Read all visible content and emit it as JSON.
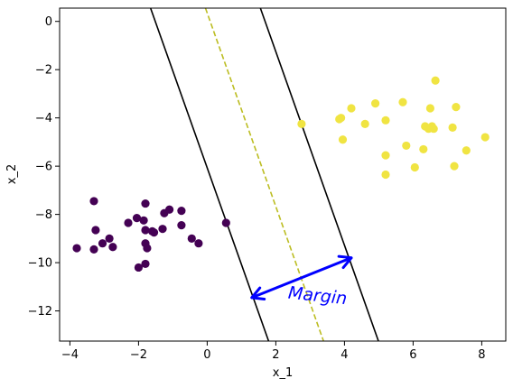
{
  "chart_data": {
    "type": "scatter",
    "xlabel": "x_1",
    "ylabel": "x_2",
    "xlim": [
      -4.3,
      8.7
    ],
    "ylim": [
      -13.25,
      0.55
    ],
    "xticks": [
      -4,
      -2,
      0,
      2,
      4,
      6,
      8
    ],
    "yticks": [
      0,
      -2,
      -4,
      -6,
      -8,
      -10,
      -12
    ],
    "xtick_labels": [
      "−4",
      "−2",
      "0",
      "2",
      "4",
      "6",
      "8"
    ],
    "ytick_labels": [
      "0",
      "−2",
      "−4",
      "−6",
      "−8",
      "−10",
      "−12"
    ],
    "grid": false,
    "series": [
      {
        "color": "#440154",
        "points": [
          [
            -3.8,
            -9.4
          ],
          [
            -3.3,
            -9.45
          ],
          [
            -3.3,
            -7.45
          ],
          [
            -3.25,
            -8.65
          ],
          [
            -3.05,
            -9.2
          ],
          [
            -2.85,
            -9.0
          ],
          [
            -2.75,
            -9.35
          ],
          [
            -2.3,
            -8.35
          ],
          [
            -2.05,
            -8.15
          ],
          [
            -1.85,
            -8.25
          ],
          [
            -1.8,
            -7.55
          ],
          [
            -1.8,
            -8.65
          ],
          [
            -1.8,
            -9.2
          ],
          [
            -1.75,
            -9.4
          ],
          [
            -1.6,
            -8.7
          ],
          [
            -1.55,
            -8.75
          ],
          [
            -1.3,
            -8.6
          ],
          [
            -1.25,
            -7.95
          ],
          [
            -1.1,
            -7.8
          ],
          [
            -0.75,
            -7.85
          ],
          [
            -0.75,
            -8.45
          ],
          [
            -0.45,
            -9.0
          ],
          [
            -0.25,
            -9.2
          ],
          [
            -2.0,
            -10.2
          ],
          [
            -1.8,
            -10.05
          ],
          [
            0.55,
            -8.35
          ]
        ]
      },
      {
        "color": "#f0e442",
        "points": [
          [
            2.75,
            -4.25
          ],
          [
            3.85,
            -4.05
          ],
          [
            3.9,
            -4.0
          ],
          [
            3.95,
            -4.9
          ],
          [
            4.2,
            -3.6
          ],
          [
            4.6,
            -4.25
          ],
          [
            4.9,
            -3.4
          ],
          [
            5.2,
            -4.1
          ],
          [
            5.2,
            -5.55
          ],
          [
            5.2,
            -6.35
          ],
          [
            5.7,
            -3.35
          ],
          [
            5.8,
            -5.15
          ],
          [
            6.05,
            -6.05
          ],
          [
            6.3,
            -5.3
          ],
          [
            6.35,
            -4.35
          ],
          [
            6.45,
            -4.45
          ],
          [
            6.5,
            -3.6
          ],
          [
            6.55,
            -4.35
          ],
          [
            6.6,
            -4.45
          ],
          [
            6.65,
            -2.45
          ],
          [
            7.15,
            -4.4
          ],
          [
            7.2,
            -6.0
          ],
          [
            7.25,
            -3.55
          ],
          [
            7.55,
            -5.35
          ],
          [
            8.1,
            -4.8
          ]
        ]
      }
    ],
    "lines": [
      {
        "style": "solid",
        "color": "#000000",
        "from": [
          -1.65,
          0.55
        ],
        "to": [
          1.79,
          -13.25
        ]
      },
      {
        "style": "dashed",
        "color": "#bcbd22",
        "from": [
          -0.05,
          0.55
        ],
        "to": [
          3.39,
          -13.25
        ]
      },
      {
        "style": "solid",
        "color": "#000000",
        "from": [
          1.55,
          0.55
        ],
        "to": [
          4.99,
          -13.25
        ]
      }
    ],
    "annotation": {
      "text": "Margin",
      "color": "#0000ff",
      "arrow_from": [
        1.3,
        -11.45
      ],
      "arrow_to": [
        4.2,
        -9.8
      ],
      "text_at": [
        3.2,
        -11.6
      ]
    }
  }
}
